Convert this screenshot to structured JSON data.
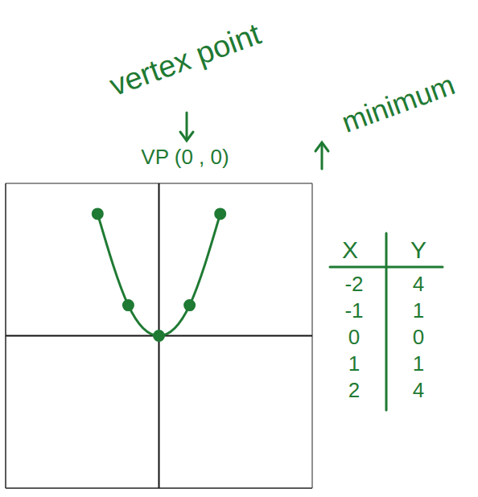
{
  "chart_data": {
    "type": "line",
    "x": [
      -2,
      -1,
      0,
      1,
      2
    ],
    "values": [
      4,
      1,
      0,
      1,
      4
    ],
    "color": "#1f7a33",
    "marker": "circle",
    "xlim": [
      -5,
      5
    ],
    "ylim": [
      -5,
      5
    ],
    "xticks": [
      -5,
      -4,
      -3,
      -2,
      -1,
      0,
      1,
      2,
      3,
      4,
      5
    ],
    "yticks": [
      -5,
      -4,
      -3,
      -2,
      -1,
      0,
      1,
      2,
      3,
      4,
      5
    ],
    "grid": true,
    "tick_labels": false,
    "annotations": [
      "vertex point",
      "VP (0 , 0)",
      "minimum"
    ],
    "table": {
      "columns": [
        "X",
        "Y"
      ],
      "rows": [
        [
          -2,
          4
        ],
        [
          -1,
          1
        ],
        [
          0,
          0
        ],
        [
          1,
          1
        ],
        [
          2,
          4
        ]
      ]
    }
  }
}
